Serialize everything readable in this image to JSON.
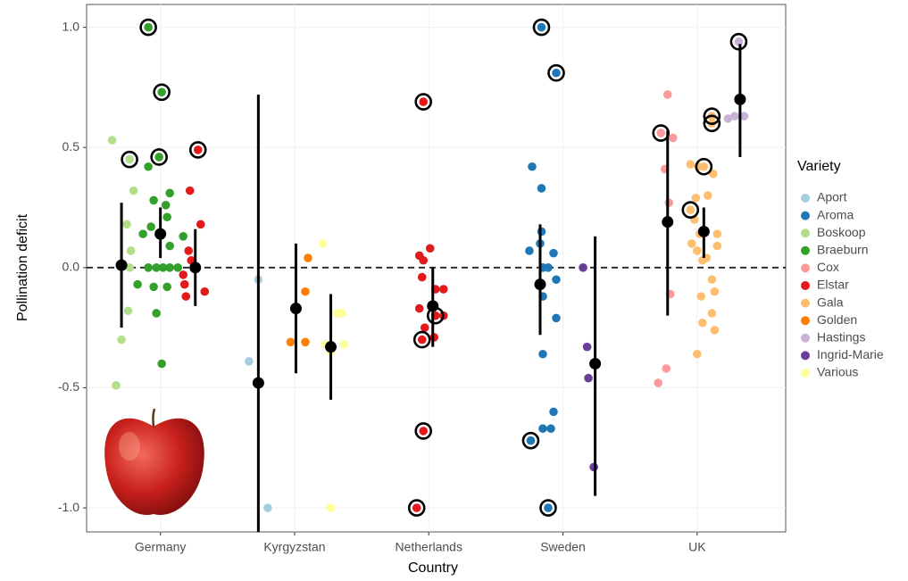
{
  "chart_data": {
    "type": "scatter",
    "x_label": "Country",
    "y_label": "Pollination deficit",
    "categories": [
      "Germany",
      "Kyrgyzstan",
      "Netherlands",
      "Sweden",
      "UK"
    ],
    "xlim": [
      0.45,
      5.66
    ],
    "ylim": [
      -1.1,
      1.095
    ],
    "yticks": [
      {
        "value": -1,
        "label": "-1.0"
      },
      {
        "value": -0.5,
        "label": "-0.5"
      },
      {
        "value": 0,
        "label": "0.0"
      },
      {
        "value": 0.5,
        "label": "0.5"
      },
      {
        "value": 1,
        "label": "1.0"
      }
    ],
    "grid": true,
    "hline": 0,
    "legend_title": "Variety",
    "legend": "right",
    "series": [
      {
        "name": "Aport",
        "color": "#a6cee3",
        "x": [
          1.73,
          1.66,
          1.8
        ],
        "values": [
          -0.05,
          -0.39,
          -1.0
        ]
      },
      {
        "name": "Aroma",
        "color": "#1f78b4",
        "x": [
          3.84,
          3.95,
          3.77,
          3.84,
          3.84,
          3.83,
          3.75,
          3.93,
          3.85,
          3.89,
          3.95,
          3.85,
          3.95,
          3.85,
          3.93,
          3.85,
          3.91,
          3.76,
          3.89
        ],
        "values": [
          1.0,
          0.81,
          0.42,
          0.33,
          0.15,
          0.1,
          0.07,
          0.06,
          0,
          0,
          -0.05,
          -0.12,
          -0.21,
          -0.36,
          -0.6,
          -0.67,
          -0.67,
          -0.72,
          -1.0
        ]
      },
      {
        "name": "Boskoop",
        "color": "#b2df8a",
        "x": [
          0.64,
          0.77,
          0.8,
          0.75,
          0.78,
          0.77,
          0.76,
          0.71,
          0.67
        ],
        "values": [
          0.53,
          0.45,
          0.32,
          0.18,
          0.07,
          0,
          -0.18,
          -0.3,
          -0.49
        ]
      },
      {
        "name": "Braeburn",
        "color": "#33a02c",
        "x": [
          0.91,
          1.01,
          0.99,
          0.91,
          0.95,
          1.04,
          1.07,
          1.05,
          0.93,
          0.87,
          0.97,
          0.91,
          1.02,
          1.07,
          1.13,
          1.17,
          1.07,
          0.95,
          0.83,
          1.05,
          0.97,
          1.01
        ],
        "values": [
          1.0,
          0.73,
          0.46,
          0.42,
          0.28,
          0.26,
          0.31,
          0.21,
          0.17,
          0.14,
          0,
          0,
          0,
          0,
          0,
          0.13,
          0.09,
          -0.08,
          -0.07,
          -0.08,
          -0.19,
          -0.4
        ]
      },
      {
        "name": "Cox",
        "color": "#fb9a99",
        "x": [
          4.78,
          4.73,
          4.82,
          4.76,
          4.79,
          4.8,
          4.77,
          4.71
        ],
        "values": [
          0.72,
          0.56,
          0.54,
          0.41,
          0.27,
          -0.11,
          -0.42,
          -0.48
        ]
      },
      {
        "name": "Elstar",
        "color": "#e31a1c",
        "x": [
          1.28,
          1.22,
          1.3,
          1.21,
          1.23,
          1.17,
          1.18,
          1.19,
          1.33,
          1.25,
          2.96,
          2.93,
          3.01,
          2.96,
          2.95,
          3.05,
          3.11,
          3.11,
          3.05,
          2.95,
          3.04,
          2.96,
          2.91,
          2.97,
          2.93
        ],
        "values": [
          0.49,
          0.32,
          0.18,
          0.07,
          0.03,
          -0.03,
          -0.07,
          -0.12,
          -0.1,
          0,
          0.69,
          0.05,
          0.08,
          0.03,
          -0.04,
          -0.09,
          -0.09,
          -0.2,
          -0.2,
          -0.3,
          -0.29,
          -0.68,
          -1.0,
          -0.25,
          -0.17
        ]
      },
      {
        "name": "Gala",
        "color": "#fdbf6f",
        "x": [
          5.11,
          5.11,
          5.05,
          4.95,
          5.01,
          5.12,
          4.99,
          5.08,
          4.98,
          5.02,
          4.96,
          5.0,
          5.04,
          5.15,
          5.15,
          5.07,
          5.11,
          5.13,
          5.03,
          5.11,
          5.13,
          5.04,
          5.0,
          4.95
        ],
        "values": [
          0.63,
          0.6,
          0.42,
          0.43,
          0.42,
          0.39,
          0.29,
          0.3,
          0.2,
          0.14,
          0.1,
          0.07,
          0.03,
          0.14,
          0.09,
          0.04,
          -0.05,
          -0.1,
          -0.12,
          -0.19,
          -0.26,
          -0.23,
          -0.36,
          0.24
        ]
      },
      {
        "name": "Golden",
        "color": "#ff7f00",
        "x": [
          2.1,
          2.08,
          1.97,
          2.08
        ],
        "values": [
          0.04,
          -0.1,
          -0.31,
          -0.31
        ]
      },
      {
        "name": "Hastings",
        "color": "#cab2d6",
        "x": [
          5.31,
          5.23,
          5.28,
          5.35
        ],
        "values": [
          0.94,
          0.62,
          0.63,
          0.63
        ]
      },
      {
        "name": "Ingrid-Marie",
        "color": "#6a3d9a",
        "x": [
          4.15,
          4.18,
          4.19,
          4.23
        ],
        "values": [
          0,
          -0.33,
          -0.46,
          -0.83
        ]
      },
      {
        "name": "Various",
        "color": "#ffff99",
        "x": [
          2.21,
          2.32,
          2.35,
          2.23,
          2.27,
          2.37,
          2.27
        ],
        "values": [
          0.1,
          -0.19,
          -0.19,
          -0.32,
          -0.35,
          -0.32,
          -1.0
        ]
      }
    ],
    "rings": {
      "color": "#000000",
      "x": [
        0.91,
        1.01,
        0.77,
        0.99,
        1.28,
        2.96,
        3.05,
        2.95,
        2.96,
        2.91,
        3.84,
        3.95,
        3.76,
        3.89,
        4.73,
        5.11,
        5.11,
        5.05,
        4.95,
        5.31
      ],
      "values": [
        1.0,
        0.73,
        0.45,
        0.46,
        0.49,
        0.69,
        -0.2,
        -0.3,
        -0.68,
        -1.0,
        1.0,
        0.81,
        -0.72,
        -1.0,
        0.56,
        0.63,
        0.6,
        0.42,
        0.24,
        0.94
      ]
    },
    "means": {
      "color": "#000000",
      "x": [
        0.71,
        1.0,
        1.26,
        1.73,
        2.01,
        2.27,
        3.03,
        3.83,
        4.24,
        4.78,
        5.05,
        5.32
      ],
      "values": [
        0.01,
        0.14,
        0,
        -0.48,
        -0.17,
        -0.33,
        -0.16,
        -0.07,
        -0.4,
        0.19,
        0.15,
        0.7
      ],
      "high": [
        0.27,
        0.25,
        0.16,
        0.72,
        0.1,
        -0.11,
        0,
        0.18,
        0.13,
        0.57,
        0.25,
        0.93
      ],
      "low": [
        -0.25,
        0.04,
        -0.16,
        -1.2,
        -0.44,
        -0.55,
        -0.33,
        -0.28,
        -0.95,
        -0.2,
        0.04,
        0.46
      ]
    }
  }
}
